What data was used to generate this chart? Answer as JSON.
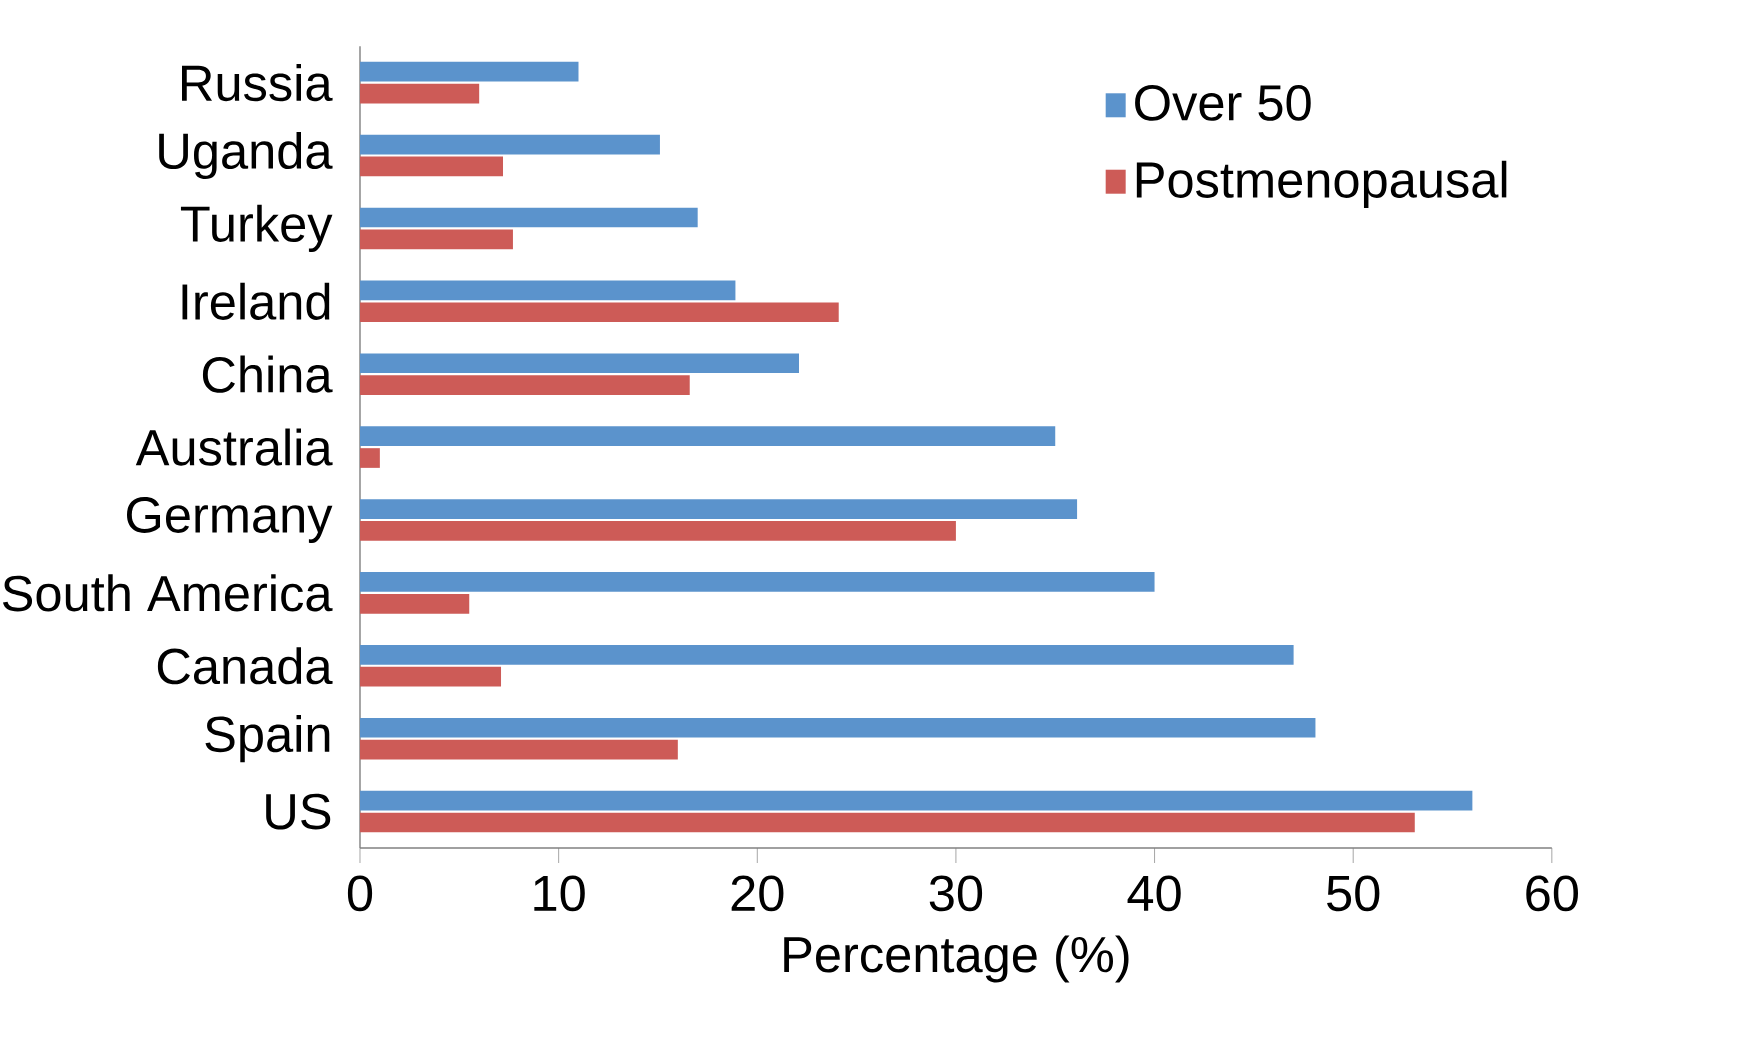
{
  "chart_data": {
    "type": "bar",
    "orientation": "horizontal",
    "xlabel": "Percentage (%)",
    "categories": [
      "Russia",
      "Uganda",
      "Turkey",
      "Ireland",
      "China",
      "Australia",
      "Germany",
      "South America",
      "Canada",
      "Spain",
      "US"
    ],
    "series": [
      {
        "name": "Over 50",
        "color": "#5b93cc",
        "values": [
          11,
          15.1,
          17,
          18.9,
          22.1,
          35,
          36.1,
          40,
          47,
          48.1,
          56
        ]
      },
      {
        "name": "Postmenopausal",
        "color": "#cd5b57",
        "values": [
          6,
          7.2,
          7.7,
          24.1,
          16.6,
          1,
          30,
          5.5,
          7.1,
          16,
          53.1
        ]
      }
    ],
    "xlim": [
      0,
      60
    ],
    "xticks": [
      0,
      10,
      20,
      30,
      40,
      50,
      60
    ],
    "legend": "top right",
    "grid": false
  }
}
